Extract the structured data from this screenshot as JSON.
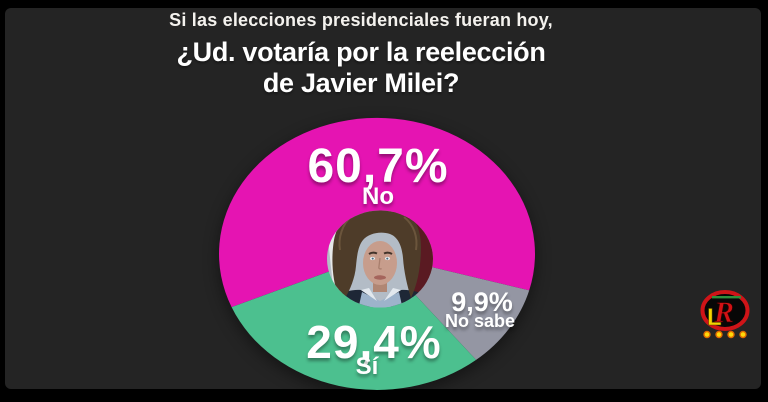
{
  "frame": {
    "outer_bg": "#000000",
    "panel_bg": "#242424"
  },
  "title": {
    "line1": "Si las elecciones presidenciales fueran hoy,",
    "line2": "¿Ud. votaría por la reelección",
    "line3": "de Javier Milei?"
  },
  "chart_data": {
    "type": "pie",
    "subtitle": "Si las elecciones presidenciales fueran hoy,",
    "title": "¿Ud. votaría por la reelección de Javier Milei?",
    "direction": "clockwise",
    "start_angle_deg": 157,
    "center_image": "javier-milei-portrait",
    "legend_position": "labels-on-slices",
    "segments": [
      {
        "label": "No",
        "value_pct": 60.7,
        "display": "60,7%",
        "color": "#e514b2"
      },
      {
        "label": "No sabe",
        "value_pct": 9.9,
        "display": "9,9%",
        "color": "#9496a3"
      },
      {
        "label": "Sí",
        "value_pct": 29.4,
        "display": "29,4%",
        "color": "#4cc08f"
      }
    ]
  },
  "watermark": {
    "r": "R",
    "l": "L"
  }
}
